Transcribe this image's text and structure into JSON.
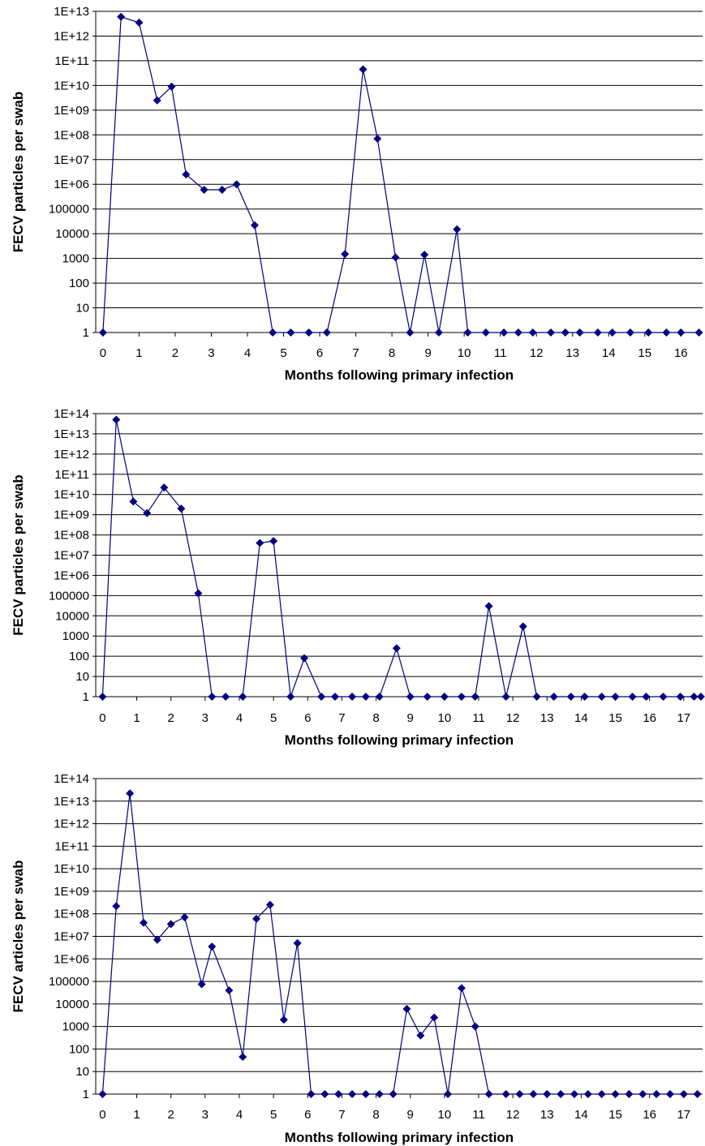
{
  "chart_data": [
    {
      "type": "line",
      "xlabel": "Months following primary infection",
      "ylabel": "FECV particles per swab",
      "y_scale": "log",
      "ylim": [
        1,
        10000000000000.0
      ],
      "y_ticks": [
        "1",
        "10",
        "100",
        "1000",
        "10000",
        "100000",
        "1E+06",
        "1E+07",
        "1E+08",
        "1E+09",
        "1E+10",
        "1E+11",
        "1E+12",
        "1E+13"
      ],
      "xlim": [
        -0.2,
        16.6
      ],
      "x_ticks": [
        "0",
        "1",
        "2",
        "3",
        "4",
        "5",
        "6",
        "7",
        "8",
        "9",
        "10",
        "11",
        "12",
        "13",
        "14",
        "15",
        "16"
      ],
      "grid": "horizontal",
      "marker": "diamond",
      "color": "#000080",
      "series": [
        {
          "points": [
            [
              0,
              1
            ],
            [
              0.5,
              6000000000000.0
            ],
            [
              1.0,
              3500000000000.0
            ],
            [
              1.5,
              2500000000.0
            ],
            [
              1.9,
              9000000000.0
            ],
            [
              2.3,
              2500000.0
            ],
            [
              2.8,
              600000.0
            ],
            [
              3.3,
              600000.0
            ],
            [
              3.7,
              1000000.0
            ],
            [
              4.2,
              22000
            ],
            [
              4.7,
              1
            ],
            [
              5.2,
              1
            ],
            [
              5.7,
              1
            ],
            [
              6.2,
              1
            ],
            [
              6.7,
              1500
            ],
            [
              7.2,
              45000000000.0
            ],
            [
              7.6,
              70000000.0
            ],
            [
              8.1,
              1100
            ],
            [
              8.5,
              1
            ],
            [
              8.9,
              1400
            ],
            [
              9.3,
              1
            ],
            [
              9.8,
              15000
            ],
            [
              10.1,
              1
            ],
            [
              10.6,
              1
            ],
            [
              11.1,
              1
            ],
            [
              11.5,
              1
            ],
            [
              11.9,
              1
            ],
            [
              12.4,
              1
            ],
            [
              12.8,
              1
            ],
            [
              13.2,
              1
            ],
            [
              13.7,
              1
            ],
            [
              14.1,
              1
            ],
            [
              14.6,
              1
            ],
            [
              15.1,
              1
            ],
            [
              15.6,
              1
            ],
            [
              16.0,
              1
            ],
            [
              16.5,
              1
            ]
          ]
        }
      ]
    },
    {
      "type": "line",
      "xlabel": "Months following primary infection",
      "ylabel": "FECV particles per swab",
      "y_scale": "log",
      "ylim": [
        1,
        100000000000000.0
      ],
      "y_ticks": [
        "1",
        "10",
        "100",
        "1000",
        "10000",
        "100000",
        "1E+06",
        "1E+07",
        "1E+08",
        "1E+09",
        "1E+10",
        "1E+11",
        "1E+12",
        "1E+13",
        "1E+14"
      ],
      "xlim": [
        -0.2,
        17.55
      ],
      "x_ticks": [
        "0",
        "1",
        "2",
        "3",
        "4",
        "5",
        "6",
        "7",
        "8",
        "9",
        "10",
        "11",
        "12",
        "13",
        "14",
        "15",
        "16",
        "17"
      ],
      "grid": "horizontal",
      "marker": "diamond",
      "color": "#000080",
      "series": [
        {
          "points": [
            [
              0,
              1
            ],
            [
              0.4,
              50000000000000.0
            ],
            [
              0.9,
              4500000000.0
            ],
            [
              1.3,
              1200000000.0
            ],
            [
              1.8,
              22000000000.0
            ],
            [
              2.3,
              2000000000.0
            ],
            [
              2.8,
              130000
            ],
            [
              3.2,
              1
            ],
            [
              3.6,
              1
            ],
            [
              4.1,
              1
            ],
            [
              4.6,
              40000000.0
            ],
            [
              5.0,
              50000000.0
            ],
            [
              5.5,
              1
            ],
            [
              5.9,
              80
            ],
            [
              6.4,
              1
            ],
            [
              6.8,
              1
            ],
            [
              7.3,
              1
            ],
            [
              7.7,
              1
            ],
            [
              8.1,
              1
            ],
            [
              8.6,
              250
            ],
            [
              9.0,
              1
            ],
            [
              9.5,
              1
            ],
            [
              10.0,
              1
            ],
            [
              10.5,
              1
            ],
            [
              10.9,
              1
            ],
            [
              11.3,
              30000
            ],
            [
              11.8,
              1
            ],
            [
              12.3,
              3000
            ],
            [
              12.7,
              1
            ],
            [
              13.2,
              1
            ],
            [
              13.7,
              1
            ],
            [
              14.1,
              1
            ],
            [
              14.6,
              1
            ],
            [
              15.0,
              1
            ],
            [
              15.5,
              1
            ],
            [
              15.9,
              1
            ],
            [
              16.4,
              1
            ],
            [
              16.9,
              1
            ],
            [
              17.3,
              1
            ],
            [
              17.5,
              1
            ]
          ]
        }
      ]
    },
    {
      "type": "line",
      "xlabel": "Months following primary infection",
      "ylabel": "FECV articles per swab",
      "y_scale": "log",
      "ylim": [
        1,
        100000000000000.0
      ],
      "y_ticks": [
        "1",
        "10",
        "100",
        "1000",
        "10000",
        "100000",
        "1E+06",
        "1E+07",
        "1E+08",
        "1E+09",
        "1E+10",
        "1E+11",
        "1E+12",
        "1E+13",
        "1E+14"
      ],
      "xlim": [
        -0.2,
        17.55
      ],
      "x_ticks": [
        "0",
        "1",
        "2",
        "3",
        "4",
        "5",
        "6",
        "7",
        "8",
        "9",
        "10",
        "11",
        "12",
        "13",
        "14",
        "15",
        "16",
        "17"
      ],
      "grid": "horizontal",
      "marker": "diamond",
      "color": "#000080",
      "series": [
        {
          "points": [
            [
              0,
              1
            ],
            [
              0.4,
              220000000.0
            ],
            [
              0.8,
              22000000000000.0
            ],
            [
              1.2,
              40000000.0
            ],
            [
              1.6,
              7000000.0
            ],
            [
              2.0,
              35000000.0
            ],
            [
              2.4,
              70000000.0
            ],
            [
              2.9,
              75000
            ],
            [
              3.2,
              3500000.0
            ],
            [
              3.7,
              40000
            ],
            [
              4.1,
              45
            ],
            [
              4.5,
              60000000.0
            ],
            [
              4.9,
              250000000.0
            ],
            [
              5.3,
              2000
            ],
            [
              5.7,
              5000000.0
            ],
            [
              6.1,
              1
            ],
            [
              6.5,
              1
            ],
            [
              6.9,
              1
            ],
            [
              7.3,
              1
            ],
            [
              7.7,
              1
            ],
            [
              8.1,
              1
            ],
            [
              8.5,
              1
            ],
            [
              8.9,
              6000
            ],
            [
              9.3,
              400
            ],
            [
              9.7,
              2500
            ],
            [
              10.1,
              1
            ],
            [
              10.5,
              50000
            ],
            [
              10.9,
              1000
            ],
            [
              11.3,
              1
            ],
            [
              11.8,
              1
            ],
            [
              12.2,
              1
            ],
            [
              12.6,
              1
            ],
            [
              13.0,
              1
            ],
            [
              13.4,
              1
            ],
            [
              13.8,
              1
            ],
            [
              14.2,
              1
            ],
            [
              14.6,
              1
            ],
            [
              15.0,
              1
            ],
            [
              15.4,
              1
            ],
            [
              15.8,
              1
            ],
            [
              16.2,
              1
            ],
            [
              16.6,
              1
            ],
            [
              17.0,
              1
            ],
            [
              17.4,
              1
            ]
          ]
        }
      ]
    }
  ]
}
